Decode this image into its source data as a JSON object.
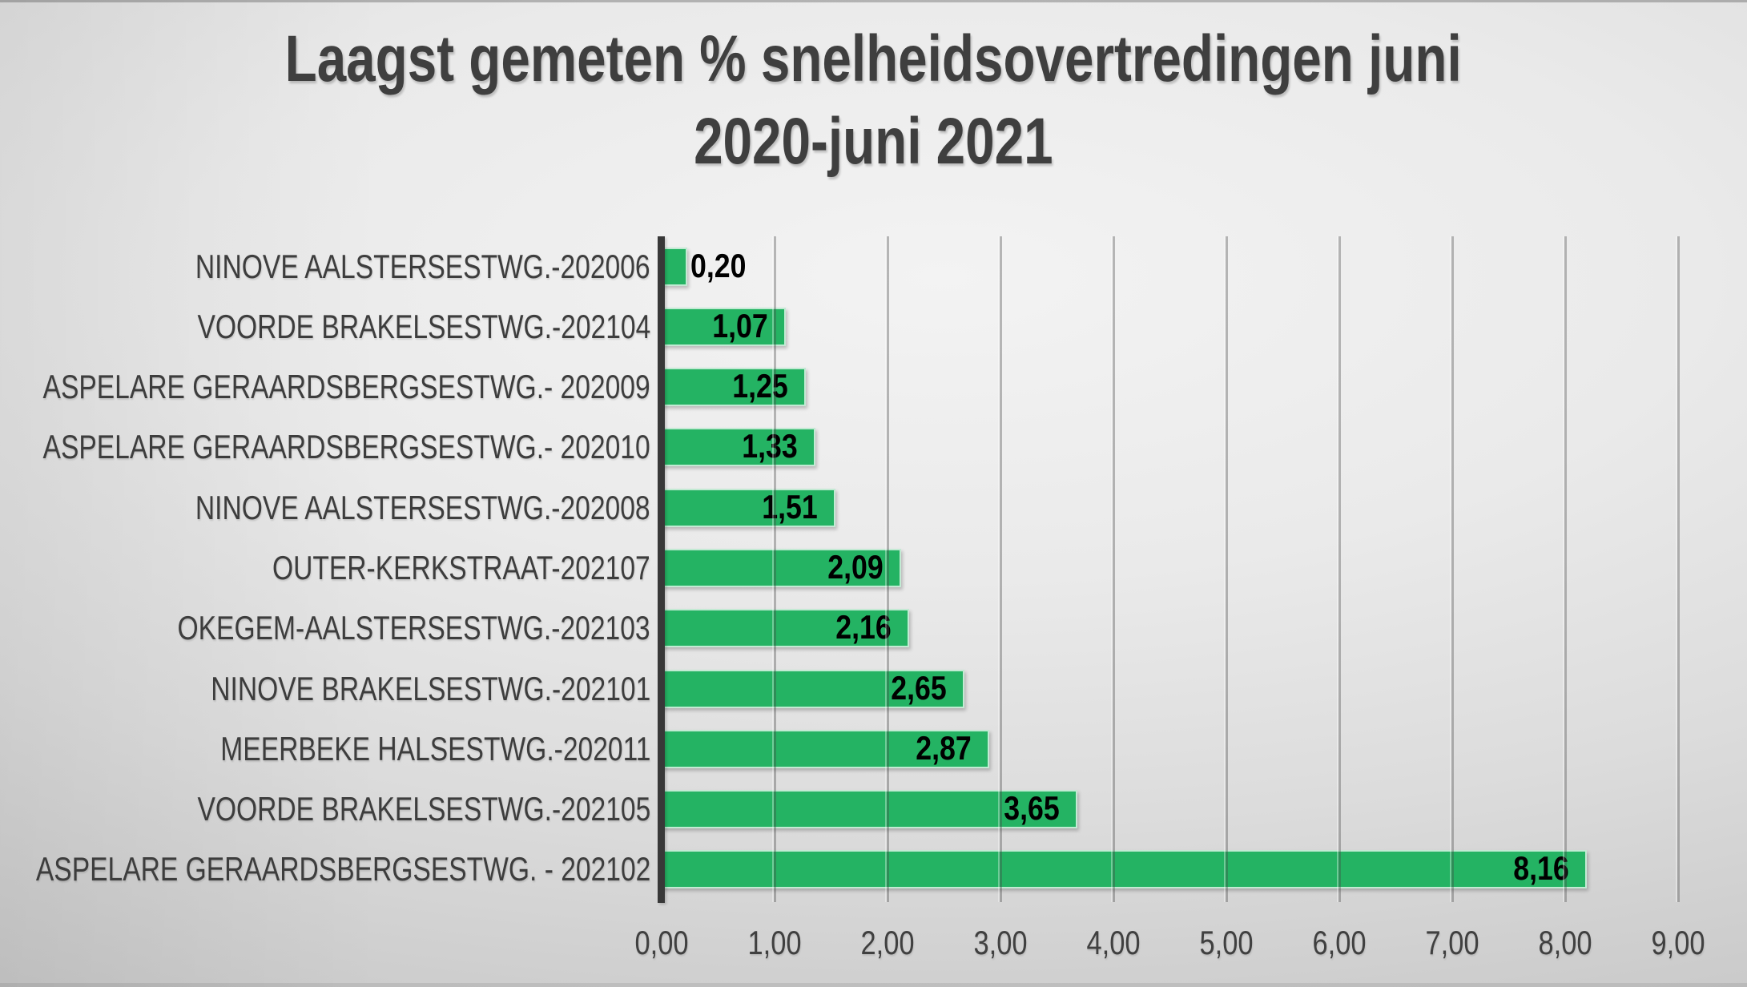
{
  "colors": {
    "bar": "#24b363",
    "bar_border": "rgba(255,255,255,0.72)",
    "title_text": "#3f3f3f",
    "category_text": "#3d3d3d",
    "value_text": "#000000",
    "tick_text": "#404040",
    "axis_line": "#383838",
    "gridline": "#8f8f8f",
    "background": "#d9d9d9"
  },
  "chart_data": {
    "type": "bar",
    "orientation": "horizontal",
    "title": "Laagst gemeten % snelheidsovertredingen juni 2020-juni 2021",
    "title_lines": [
      "Laagst gemeten % snelheidsovertredingen juni",
      "2020-juni 2021"
    ],
    "categories": [
      "NINOVE AALSTERSESTWG.-202006",
      "VOORDE BRAKELSESTWG.-202104",
      "ASPELARE GERAARDSBERGSESTWG.- 202009",
      "ASPELARE GERAARDSBERGSESTWG.- 202010",
      "NINOVE AALSTERSESTWG.-202008",
      "OUTER-KERKSTRAAT-202107",
      "OKEGEM-AALSTERSESTWG.-202103",
      "NINOVE BRAKELSESTWG.-202101",
      "MEERBEKE HALSESTWG.-202011",
      "VOORDE BRAKELSESTWG.-202105",
      "ASPELARE GERAARDSBERGSESTWG. - 202102"
    ],
    "values": [
      0.2,
      1.07,
      1.25,
      1.33,
      1.51,
      2.09,
      2.16,
      2.65,
      2.87,
      3.65,
      8.16
    ],
    "value_labels": [
      "0,20",
      "1,07",
      "1,25",
      "1,33",
      "1,51",
      "2,09",
      "2,16",
      "2,65",
      "2,87",
      "3,65",
      "8,16"
    ],
    "xlabel": "",
    "ylabel": "",
    "xlim": [
      0,
      9
    ],
    "x_tick_values": [
      0,
      1,
      2,
      3,
      4,
      5,
      6,
      7,
      8,
      9
    ],
    "x_ticks": [
      "0,00",
      "1,00",
      "2,00",
      "3,00",
      "4,00",
      "5,00",
      "6,00",
      "7,00",
      "8,00",
      "9,00"
    ],
    "grid": "vertical-major",
    "legend": "none"
  }
}
